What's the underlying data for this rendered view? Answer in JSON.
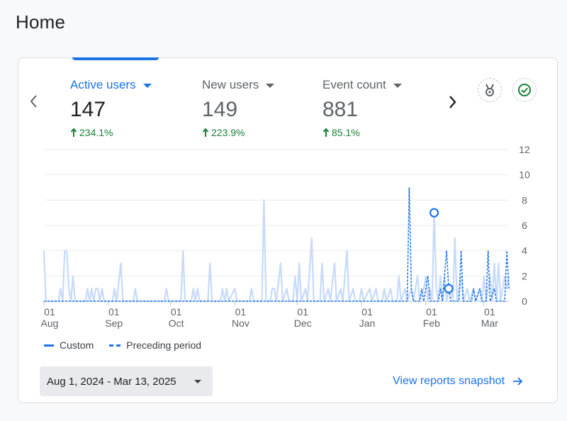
{
  "page": {
    "title": "Home"
  },
  "metrics": [
    {
      "label": "Active users",
      "value": "147",
      "change": "234.1%",
      "active": true
    },
    {
      "label": "New users",
      "value": "149",
      "change": "223.9%",
      "active": false
    },
    {
      "label": "Event count",
      "value": "881",
      "change": "85.1%",
      "active": false
    }
  ],
  "icons": {
    "prev": "chevron-left-icon",
    "next": "chevron-right-icon",
    "insights": "insights-badge-icon",
    "check": "check-circle-icon",
    "link_arrow": "arrow-right-icon"
  },
  "legend": {
    "custom": "Custom",
    "preceding": "Preceding period"
  },
  "date_range": {
    "label": "Aug 1, 2024 - Mar 13, 2025"
  },
  "link": {
    "label": "View reports snapshot"
  },
  "colors": {
    "accent": "#1a73e8",
    "positive": "#188038",
    "custom_line": "#c6dafc",
    "preceding_line": "#1a73e8"
  },
  "chart_data": {
    "type": "line",
    "x_ticks": [
      {
        "day": "01",
        "month": "Aug",
        "index": 0
      },
      {
        "day": "01",
        "month": "Sep",
        "index": 31
      },
      {
        "day": "01",
        "month": "Oct",
        "index": 61
      },
      {
        "day": "01",
        "month": "Nov",
        "index": 92
      },
      {
        "day": "01",
        "month": "Dec",
        "index": 122
      },
      {
        "day": "01",
        "month": "Jan",
        "index": 153
      },
      {
        "day": "01",
        "month": "Feb",
        "index": 184
      },
      {
        "day": "01",
        "month": "Mar",
        "index": 212
      }
    ],
    "y_ticks": [
      "0",
      "2",
      "4",
      "6",
      "8",
      "10",
      "12"
    ],
    "ylim": [
      0,
      12
    ],
    "grid": true,
    "legend_position": "bottom-left",
    "n_points": 225,
    "series": [
      {
        "name": "Custom",
        "style": "solid",
        "points": [
          [
            0,
            4
          ],
          [
            1,
            0
          ],
          [
            7,
            0
          ],
          [
            8,
            1
          ],
          [
            9,
            0
          ],
          [
            10,
            4
          ],
          [
            11,
            4
          ],
          [
            12,
            1
          ],
          [
            13,
            0
          ],
          [
            14,
            2
          ],
          [
            15,
            0
          ],
          [
            20,
            0
          ],
          [
            21,
            1
          ],
          [
            22,
            0
          ],
          [
            23,
            1
          ],
          [
            24,
            0
          ],
          [
            25,
            1
          ],
          [
            26,
            1
          ],
          [
            27,
            0
          ],
          [
            28,
            1
          ],
          [
            29,
            0
          ],
          [
            33,
            0
          ],
          [
            34,
            1
          ],
          [
            35,
            0
          ],
          [
            37,
            3
          ],
          [
            38,
            0
          ],
          [
            43,
            0
          ],
          [
            44,
            1
          ],
          [
            45,
            0
          ],
          [
            58,
            0
          ],
          [
            59,
            1
          ],
          [
            60,
            0
          ],
          [
            66,
            0
          ],
          [
            67,
            4
          ],
          [
            68,
            0
          ],
          [
            71,
            0
          ],
          [
            72,
            1
          ],
          [
            73,
            0
          ],
          [
            74,
            1
          ],
          [
            75,
            0
          ],
          [
            79,
            0
          ],
          [
            80,
            3
          ],
          [
            81,
            0
          ],
          [
            85,
            0
          ],
          [
            86,
            1
          ],
          [
            87,
            0
          ],
          [
            88,
            1
          ],
          [
            89,
            0
          ],
          [
            92,
            1
          ],
          [
            93,
            0
          ],
          [
            99,
            0
          ],
          [
            100,
            1
          ],
          [
            101,
            0
          ],
          [
            105,
            0
          ],
          [
            106,
            8
          ],
          [
            107,
            0
          ],
          [
            109,
            0
          ],
          [
            110,
            1
          ],
          [
            111,
            1
          ],
          [
            112,
            0
          ],
          [
            114,
            3
          ],
          [
            115,
            0
          ],
          [
            117,
            1
          ],
          [
            118,
            0
          ],
          [
            120,
            0
          ],
          [
            121,
            2
          ],
          [
            122,
            0
          ],
          [
            123,
            3
          ],
          [
            124,
            0
          ],
          [
            126,
            1
          ],
          [
            127,
            0
          ],
          [
            129,
            5
          ],
          [
            130,
            0
          ],
          [
            133,
            0
          ],
          [
            134,
            3
          ],
          [
            135,
            0
          ],
          [
            137,
            1
          ],
          [
            138,
            0
          ],
          [
            140,
            3
          ],
          [
            141,
            0
          ],
          [
            143,
            1
          ],
          [
            144,
            0
          ],
          [
            146,
            4
          ],
          [
            147,
            0
          ],
          [
            149,
            1
          ],
          [
            150,
            0
          ],
          [
            152,
            0
          ],
          [
            153,
            1
          ],
          [
            154,
            0
          ],
          [
            157,
            1
          ],
          [
            158,
            0
          ],
          [
            160,
            1
          ],
          [
            161,
            0
          ],
          [
            163,
            0
          ],
          [
            164,
            1
          ],
          [
            165,
            0
          ],
          [
            167,
            1
          ],
          [
            168,
            0
          ],
          [
            170,
            0
          ],
          [
            171,
            2
          ],
          [
            172,
            0
          ],
          [
            174,
            1
          ],
          [
            175,
            0
          ],
          [
            177,
            1
          ],
          [
            178,
            0
          ],
          [
            180,
            2
          ],
          [
            181,
            0
          ],
          [
            183,
            1
          ],
          [
            184,
            2
          ],
          [
            185,
            0
          ],
          [
            186,
            1
          ],
          [
            187,
            0
          ],
          [
            188,
            7
          ],
          [
            189,
            1
          ],
          [
            190,
            0
          ],
          [
            191,
            2
          ],
          [
            192,
            0
          ],
          [
            193,
            2
          ],
          [
            194,
            0
          ],
          [
            195,
            1
          ],
          [
            196,
            1
          ],
          [
            197,
            0
          ],
          [
            198,
            5
          ],
          [
            199,
            0
          ],
          [
            201,
            2
          ],
          [
            202,
            0
          ],
          [
            204,
            1
          ],
          [
            205,
            0
          ],
          [
            207,
            1
          ],
          [
            208,
            0
          ],
          [
            210,
            1
          ],
          [
            211,
            0
          ],
          [
            212,
            2
          ],
          [
            213,
            0
          ],
          [
            214,
            1
          ],
          [
            215,
            2
          ],
          [
            216,
            0
          ],
          [
            217,
            3
          ],
          [
            218,
            0
          ],
          [
            219,
            3
          ],
          [
            220,
            0
          ],
          [
            222,
            2
          ],
          [
            223,
            1
          ],
          [
            224,
            2
          ]
        ]
      },
      {
        "name": "Preceding period",
        "style": "dashed",
        "points": [
          [
            0,
            0
          ],
          [
            175,
            0
          ],
          [
            176,
            9
          ],
          [
            177,
            1
          ],
          [
            178,
            0
          ],
          [
            181,
            0
          ],
          [
            182,
            1
          ],
          [
            183,
            0
          ],
          [
            185,
            2
          ],
          [
            186,
            0
          ],
          [
            190,
            0
          ],
          [
            191,
            1
          ],
          [
            192,
            0
          ],
          [
            194,
            4
          ],
          [
            195,
            1
          ],
          [
            196,
            0
          ],
          [
            200,
            0
          ],
          [
            201,
            4
          ],
          [
            202,
            0
          ],
          [
            206,
            0
          ],
          [
            207,
            1
          ],
          [
            208,
            0
          ],
          [
            210,
            1
          ],
          [
            211,
            0
          ],
          [
            213,
            0
          ],
          [
            214,
            4
          ],
          [
            215,
            0
          ],
          [
            217,
            1
          ],
          [
            218,
            0
          ],
          [
            222,
            0
          ],
          [
            223,
            4
          ],
          [
            224,
            1
          ]
        ]
      }
    ],
    "highlighted_points": [
      {
        "series": "Custom",
        "index": 188,
        "value": 7
      },
      {
        "series": "Custom",
        "index": 195,
        "value": 1
      }
    ]
  }
}
